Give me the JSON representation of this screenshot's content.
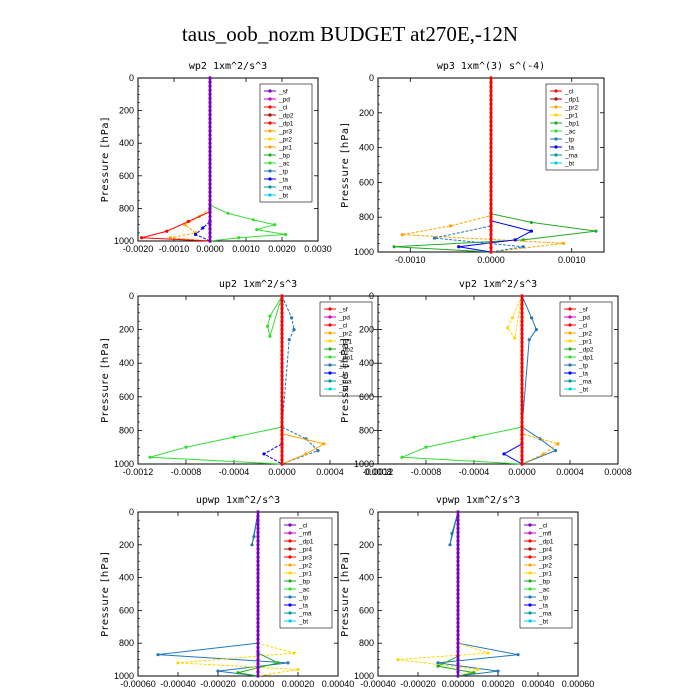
{
  "title": "taus_oob_nozm  BUDGET at270E,-12N",
  "colors": {
    "red": "#ff0000",
    "darkred": "#b00000",
    "magenta": "#cc00cc",
    "purple": "#7a00c0",
    "orange": "#ffa500",
    "gold": "#ffd700",
    "green": "#22aa22",
    "lime": "#33dd33",
    "blue": "#0000ff",
    "steel": "#2277bb",
    "cyan": "#00d0e0",
    "navy": "#000080",
    "teal": "#009999"
  },
  "chart_data": [
    {
      "type": "line",
      "title": "wp2  1xm^2/s^3",
      "ylabel": "Pressure [hPa]",
      "ylim": [
        1000,
        0
      ],
      "xlim": [
        -0.002,
        0.003
      ],
      "xticks": [
        -0.002,
        -0.001,
        0,
        0.001,
        0.002,
        0.003
      ],
      "xticklabels": [
        "-0.0020",
        "-0.0010",
        "0.0000",
        "0.0010",
        "0.0020",
        "0.0030"
      ],
      "yticks": [
        0,
        200,
        400,
        600,
        800,
        1000
      ],
      "yticklabels": [
        "0",
        "200",
        "400",
        "600",
        "800",
        "1000"
      ],
      "legend": [
        "_sf",
        "_pd",
        "_cl",
        "_dp2",
        "_dp1",
        "_pr3",
        "_pr2",
        "_pr1",
        "_bp",
        "_ac",
        "_tp",
        "_ta",
        "_ma",
        "_bt"
      ],
      "legend_colors": [
        "purple",
        "magenta",
        "red",
        "darkred",
        "red",
        "orange",
        "gold",
        "orange",
        "green",
        "lime",
        "steel",
        "blue",
        "teal",
        "cyan"
      ],
      "series": [
        {
          "color": "lime",
          "p": [
            0,
            780,
            830,
            870,
            900,
            930,
            960,
            980,
            1000
          ],
          "v": [
            0,
            0,
            0.0005,
            0.0012,
            0.0018,
            0.0013,
            0.0021,
            0.0008,
            0
          ]
        },
        {
          "color": "orange",
          "p": [
            0,
            800,
            850,
            900,
            950,
            980,
            1000
          ],
          "v": [
            0,
            0,
            -0.0003,
            -0.0007,
            -0.0004,
            -0.0011,
            0
          ]
        },
        {
          "color": "red",
          "p": [
            0,
            820,
            880,
            940,
            980,
            1000
          ],
          "v": [
            0,
            0,
            -0.0006,
            -0.0012,
            -0.0019,
            0
          ]
        },
        {
          "color": "blue",
          "p": [
            0,
            880,
            920,
            960,
            1000
          ],
          "v": [
            0,
            0,
            -0.0002,
            -0.0004,
            0
          ]
        },
        {
          "color": "purple",
          "p": [
            0,
            1000
          ],
          "v": [
            0,
            0
          ]
        }
      ]
    },
    {
      "type": "line",
      "title": "wp3  1xm^(3) s^(-4)",
      "ylabel": "Pressure [hPa]",
      "ylim": [
        1000,
        0
      ],
      "xlim": [
        -0.0014,
        0.0014
      ],
      "xticks": [
        -0.001,
        0,
        0.001
      ],
      "xticklabels": [
        "-0.0010",
        "0.0000",
        "0.0010"
      ],
      "yticks": [
        0,
        200,
        400,
        600,
        800,
        1000
      ],
      "yticklabels": [
        "0",
        "200",
        "400",
        "600",
        "800",
        "1000"
      ],
      "legend": [
        "_cl",
        "_dp1",
        "_pr2",
        "_pr1",
        "_bp1",
        "_ac",
        "_tp",
        "_ta",
        "_ma",
        "_bt"
      ],
      "legend_colors": [
        "red",
        "darkred",
        "orange",
        "gold",
        "green",
        "lime",
        "steel",
        "blue",
        "teal",
        "cyan"
      ],
      "series": [
        {
          "color": "green",
          "p": [
            0,
            780,
            830,
            880,
            930,
            970,
            1000
          ],
          "v": [
            0,
            0,
            0.0005,
            0.0013,
            0.0004,
            -0.0012,
            0
          ]
        },
        {
          "color": "orange",
          "p": [
            0,
            790,
            850,
            900,
            950,
            1000
          ],
          "v": [
            0,
            0,
            -0.0005,
            -0.0011,
            0.0009,
            0
          ]
        },
        {
          "color": "blue",
          "p": [
            0,
            820,
            880,
            930,
            970,
            1000
          ],
          "v": [
            0,
            0,
            0.0005,
            0.0003,
            -0.0004,
            0
          ]
        },
        {
          "color": "steel",
          "p": [
            0,
            850,
            920,
            970,
            1000
          ],
          "v": [
            0,
            0,
            -0.0007,
            0.0004,
            0
          ]
        },
        {
          "color": "red",
          "p": [
            0,
            1000
          ],
          "v": [
            0,
            0
          ]
        }
      ]
    },
    {
      "type": "line",
      "title": "up2  1xm^2/s^3",
      "ylabel": "Pressure [hPa]",
      "ylim": [
        1000,
        0
      ],
      "xlim": [
        -0.0012,
        0.0008
      ],
      "xticks": [
        -0.0012,
        -0.0008,
        -0.0004,
        0,
        0.0004,
        0.0008
      ],
      "xticklabels": [
        "-0.0012",
        "-0.0008",
        "-0.0004",
        "0.0000",
        "0.0004",
        "0.0008"
      ],
      "yticks": [
        0,
        200,
        400,
        600,
        800,
        1000
      ],
      "yticklabels": [
        "0",
        "200",
        "400",
        "600",
        "800",
        "1000"
      ],
      "legend": [
        "_sf",
        "_pd",
        "_cl",
        "_pr2",
        "_pr1",
        "_dp2",
        "_dp1",
        "_tp",
        "_ta",
        "_ma",
        "_bt"
      ],
      "legend_colors": [
        "red",
        "magenta",
        "red",
        "orange",
        "gold",
        "green",
        "lime",
        "steel",
        "blue",
        "teal",
        "cyan"
      ],
      "series": [
        {
          "color": "lime",
          "p": [
            0,
            120,
            180,
            240,
            0,
            780,
            840,
            900,
            960,
            1000
          ],
          "v": [
            0,
            -0.0001,
            -0.00012,
            -0.0001,
            0,
            0,
            -0.0004,
            -0.0008,
            -0.0011,
            0
          ]
        },
        {
          "color": "steel",
          "p": [
            0,
            130,
            200,
            260,
            780,
            850,
            920,
            1000
          ],
          "v": [
            0,
            8e-05,
            0.0001,
            6e-05,
            0,
            0.0002,
            0.0003,
            0
          ]
        },
        {
          "color": "orange",
          "p": [
            0,
            820,
            880,
            940,
            1000
          ],
          "v": [
            0,
            0,
            0.00035,
            0.0002,
            0
          ]
        },
        {
          "color": "blue",
          "p": [
            0,
            880,
            940,
            1000
          ],
          "v": [
            0,
            0,
            -0.00015,
            0
          ]
        },
        {
          "color": "red",
          "p": [
            0,
            1000
          ],
          "v": [
            0,
            0
          ]
        }
      ]
    },
    {
      "type": "line",
      "title": "vp2  1xm^2/s^3",
      "ylabel": "Pressure [hPa]",
      "ylim": [
        1000,
        0
      ],
      "xlim": [
        -0.0012,
        0.0008
      ],
      "xticks": [
        -0.0012,
        -0.0008,
        -0.0004,
        0,
        0.0004,
        0.0008
      ],
      "xticklabels": [
        "-0.0012",
        "-0.0008",
        "-0.0004",
        "0.0000",
        "0.0004",
        "0.0008"
      ],
      "yticks": [
        0,
        200,
        400,
        600,
        800,
        1000
      ],
      "yticklabels": [
        "0",
        "200",
        "400",
        "600",
        "800",
        "1000"
      ],
      "legend": [
        "_sf",
        "_pd",
        "_cl",
        "_pr2",
        "_pr1",
        "_dp2",
        "_dp1",
        "_tp",
        "_ta",
        "_ma",
        "_bt"
      ],
      "legend_colors": [
        "red",
        "magenta",
        "red",
        "orange",
        "gold",
        "green",
        "lime",
        "steel",
        "blue",
        "teal",
        "cyan"
      ],
      "series": [
        {
          "color": "lime",
          "p": [
            0,
            780,
            840,
            900,
            960,
            1000
          ],
          "v": [
            0,
            0,
            -0.0004,
            -0.0008,
            -0.001,
            0
          ]
        },
        {
          "color": "gold",
          "p": [
            0,
            130,
            190,
            250,
            0
          ],
          "v": [
            0,
            -8e-05,
            -0.00012,
            -6e-05,
            0
          ]
        },
        {
          "color": "steel",
          "p": [
            0,
            130,
            200,
            260,
            780,
            850,
            920,
            1000
          ],
          "v": [
            0,
            8e-05,
            0.00012,
            6e-05,
            0,
            0.00015,
            0.00028,
            0
          ]
        },
        {
          "color": "orange",
          "p": [
            0,
            820,
            880,
            940,
            1000
          ],
          "v": [
            0,
            0,
            0.0003,
            0.00018,
            0
          ]
        },
        {
          "color": "blue",
          "p": [
            0,
            880,
            940,
            1000
          ],
          "v": [
            0,
            0,
            -0.00015,
            0
          ]
        },
        {
          "color": "red",
          "p": [
            0,
            1000
          ],
          "v": [
            0,
            0
          ]
        }
      ]
    },
    {
      "type": "line",
      "title": "upwp  1xm^2/s^3",
      "ylabel": "Pressure [hPa]",
      "ylim": [
        1000,
        0
      ],
      "xlim": [
        -0.0006,
        0.0004
      ],
      "xticks": [
        -0.0006,
        -0.0004,
        -0.0002,
        0,
        0.0002,
        0.0004
      ],
      "xticklabels": [
        "-0.00060",
        "-0.00040",
        "-0.00020",
        "0.00000",
        "0.00020",
        "0.00040"
      ],
      "yticks": [
        0,
        200,
        400,
        600,
        800,
        1000
      ],
      "yticklabels": [
        "0",
        "200",
        "400",
        "600",
        "800",
        "1000"
      ],
      "legend": [
        "_cl",
        "_mfl",
        "_dp1",
        "_pr4",
        "_pr3",
        "_pr2",
        "_pr1",
        "_bp",
        "_ac",
        "_tp",
        "_ta",
        "_ma",
        "_bt"
      ],
      "legend_colors": [
        "purple",
        "magenta",
        "red",
        "darkred",
        "red",
        "orange",
        "gold",
        "green",
        "lime",
        "steel",
        "blue",
        "teal",
        "cyan"
      ],
      "series": [
        {
          "color": "steel",
          "p": [
            0,
            150,
            200,
            0,
            800,
            870,
            920,
            970,
            1000
          ],
          "v": [
            0,
            -2e-05,
            -3e-05,
            0,
            0,
            -0.0005,
            0.00015,
            -0.0002,
            0
          ]
        },
        {
          "color": "gold",
          "p": [
            0,
            800,
            860,
            920,
            960,
            1000
          ],
          "v": [
            0,
            0,
            0.00018,
            -0.0004,
            0.0002,
            0
          ]
        },
        {
          "color": "green",
          "p": [
            0,
            860,
            920,
            980,
            1000
          ],
          "v": [
            0,
            0,
            0.0001,
            -0.0001,
            0
          ]
        },
        {
          "color": "purple",
          "p": [
            0,
            1000
          ],
          "v": [
            0,
            0
          ]
        }
      ]
    },
    {
      "type": "line",
      "title": "vpwp  1xm^2/s^3",
      "ylabel": "Pressure [hPa]",
      "ylim": [
        1000,
        0
      ],
      "xlim": [
        -0.0004,
        0.0006
      ],
      "xticks": [
        -0.0004,
        -0.0002,
        0,
        0.0002,
        0.0004,
        0.0006
      ],
      "xticklabels": [
        "-0.00040",
        "-0.00020",
        "0.00000",
        "0.00020",
        "0.00040",
        "0.00060"
      ],
      "yticks": [
        0,
        200,
        400,
        600,
        800,
        1000
      ],
      "yticklabels": [
        "0",
        "200",
        "400",
        "600",
        "800",
        "1000"
      ],
      "legend": [
        "_cl",
        "_mfl",
        "_dp1",
        "_pr4",
        "_pr3",
        "_pr2",
        "_pr1",
        "_bp",
        "_ac",
        "_tp",
        "_ta",
        "_ma",
        "_bt"
      ],
      "legend_colors": [
        "purple",
        "magenta",
        "red",
        "darkred",
        "red",
        "orange",
        "gold",
        "green",
        "lime",
        "steel",
        "blue",
        "teal",
        "cyan"
      ],
      "series": [
        {
          "color": "steel",
          "p": [
            0,
            130,
            200,
            0,
            800,
            870,
            920,
            970,
            1000
          ],
          "v": [
            0,
            -3e-05,
            -4e-05,
            0,
            0,
            0.0003,
            -0.0001,
            0.0002,
            0
          ]
        },
        {
          "color": "gold",
          "p": [
            0,
            800,
            860,
            900,
            960,
            1000
          ],
          "v": [
            0,
            0,
            0.00015,
            -0.0003,
            0.0001,
            0
          ]
        },
        {
          "color": "green",
          "p": [
            0,
            880,
            940,
            980,
            1000
          ],
          "v": [
            0,
            0,
            -0.0001,
            8e-05,
            0
          ]
        },
        {
          "color": "purple",
          "p": [
            0,
            1000
          ],
          "v": [
            0,
            0
          ]
        }
      ]
    }
  ]
}
